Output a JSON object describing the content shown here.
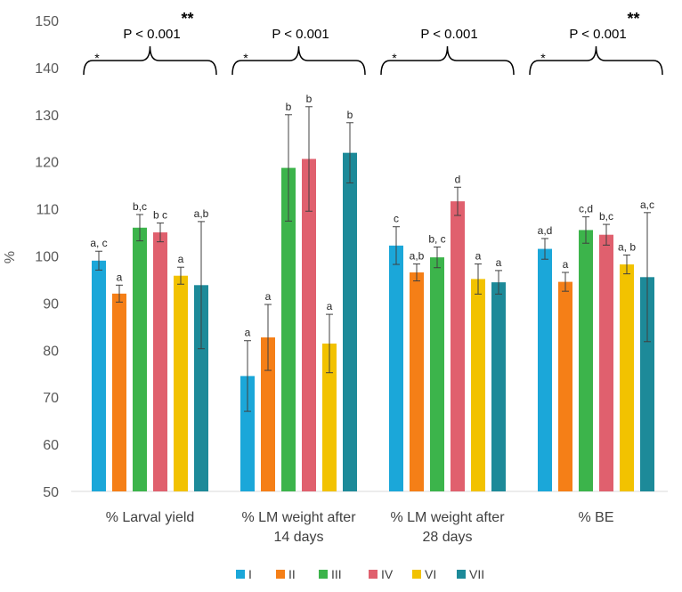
{
  "chart_data": {
    "type": "bar",
    "title": "",
    "xlabel": "",
    "ylabel": "%",
    "ylim": [
      50,
      150
    ],
    "yticks": [
      50,
      60,
      70,
      80,
      90,
      100,
      110,
      120,
      130,
      140,
      150
    ],
    "grid": false,
    "legend_position": "bottom",
    "categories": [
      "% Larval yield",
      "% LM weight after 14 days",
      "% LM weight after 28 days",
      "% BE"
    ],
    "category_lines": [
      [
        "% Larval yield"
      ],
      [
        "% LM weight after",
        "14 days"
      ],
      [
        "% LM weight after",
        "28 days"
      ],
      [
        "% BE"
      ]
    ],
    "series": [
      {
        "name": "I",
        "color": "#1ba7d9",
        "values": [
          99.0,
          74.5,
          102.2,
          101.5
        ],
        "errors": [
          2.0,
          7.5,
          4.0,
          2.2
        ],
        "letters": [
          "a, c",
          "a",
          "c",
          "a,d"
        ]
      },
      {
        "name": "II",
        "color": "#f57f17",
        "values": [
          92.0,
          82.7,
          96.5,
          94.5
        ],
        "errors": [
          1.8,
          7.0,
          1.8,
          2.0
        ],
        "letters": [
          "a",
          "a",
          "a,b",
          "a"
        ]
      },
      {
        "name": "III",
        "color": "#3cb44b",
        "values": [
          106.0,
          118.7,
          99.7,
          105.5
        ],
        "errors": [
          2.8,
          11.3,
          2.2,
          2.8
        ],
        "letters": [
          "b,c",
          "b",
          "b, c",
          "c,d"
        ]
      },
      {
        "name": "IV",
        "color": "#e0606e",
        "values": [
          105.0,
          120.6,
          111.6,
          104.5
        ],
        "errors": [
          2.0,
          11.1,
          3.0,
          2.2
        ],
        "letters": [
          "b c",
          "b",
          "d",
          "b,c"
        ]
      },
      {
        "name": "VI",
        "color": "#f2c200",
        "values": [
          95.8,
          81.4,
          95.1,
          98.2
        ],
        "errors": [
          1.8,
          6.2,
          3.2,
          2.0
        ],
        "letters": [
          "a",
          "a",
          "a",
          "a, b"
        ]
      },
      {
        "name": "VII",
        "color": "#1d8a99",
        "values": [
          93.8,
          121.9,
          94.4,
          95.5
        ],
        "errors": [
          13.5,
          6.4,
          2.5,
          13.7
        ],
        "letters": [
          "a,b",
          "b",
          "a",
          "a,c"
        ]
      }
    ],
    "annotations": [
      {
        "group": 0,
        "p_text": "P < 0.001",
        "single_star": "*",
        "double_star": "**"
      },
      {
        "group": 1,
        "p_text": "P < 0.001",
        "single_star": "*",
        "double_star": ""
      },
      {
        "group": 2,
        "p_text": "P < 0.001",
        "single_star": "*",
        "double_star": ""
      },
      {
        "group": 3,
        "p_text": "P < 0.001",
        "single_star": "*",
        "double_star": "**"
      }
    ]
  }
}
